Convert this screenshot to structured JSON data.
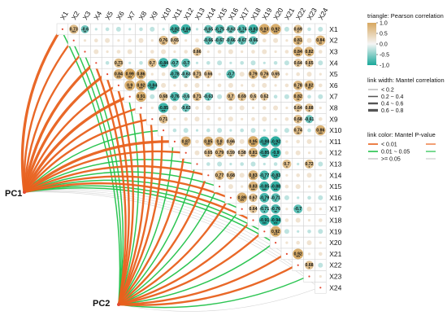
{
  "chart_data": {
    "type": "heatmap",
    "variables": [
      "X1",
      "X2",
      "X3",
      "X4",
      "X5",
      "X6",
      "X7",
      "X8",
      "X9",
      "X10",
      "X11",
      "X12",
      "X13",
      "X14",
      "X15",
      "X16",
      "X17",
      "X18",
      "X19",
      "X20",
      "X21",
      "X22",
      "X23",
      "X24"
    ],
    "predictors": [
      "PC1",
      "PC2"
    ],
    "triangle": "upper",
    "color_range": [
      -1,
      1
    ],
    "colors": {
      "positive": "#d7a860",
      "negative": "#1aa89a",
      "zero": "#f5f5f5",
      "grid": "#cfcfcf"
    },
    "correlations": [
      {
        "row": "X1",
        "col": "X2",
        "r": 0.73,
        "sig": "***"
      },
      {
        "row": "X1",
        "col": "X3",
        "r": -0.6,
        "sig": "**"
      },
      {
        "row": "X1",
        "col": "X11",
        "r": -0.82,
        "sig": "***"
      },
      {
        "row": "X1",
        "col": "X12",
        "r": -0.84,
        "sig": "***"
      },
      {
        "row": "X1",
        "col": "X14",
        "r": -0.65,
        "sig": "**"
      },
      {
        "row": "X1",
        "col": "X15",
        "r": -0.75,
        "sig": "***"
      },
      {
        "row": "X1",
        "col": "X16",
        "r": -0.63,
        "sig": "**"
      },
      {
        "row": "X1",
        "col": "X17",
        "r": -0.74,
        "sig": "***"
      },
      {
        "row": "X1",
        "col": "X18",
        "r": -0.83,
        "sig": "***"
      },
      {
        "row": "X1",
        "col": "X19",
        "r": 0.93,
        "sig": "***"
      },
      {
        "row": "X1",
        "col": "X20",
        "r": 0.92,
        "sig": "***"
      },
      {
        "row": "X1",
        "col": "X22",
        "r": 0.69,
        "sig": "*"
      },
      {
        "row": "X2",
        "col": "X10",
        "r": 0.76,
        "sig": "**"
      },
      {
        "row": "X2",
        "col": "X11",
        "r": 0.65,
        "sig": "*"
      },
      {
        "row": "X2",
        "col": "X14",
        "r": -0.66,
        "sig": "*"
      },
      {
        "row": "X2",
        "col": "X15",
        "r": -0.67,
        "sig": "*"
      },
      {
        "row": "X2",
        "col": "X16",
        "r": -0.66,
        "sig": "*"
      },
      {
        "row": "X2",
        "col": "X17",
        "r": -0.67,
        "sig": "*"
      },
      {
        "row": "X2",
        "col": "X18",
        "r": -0.66,
        "sig": "*"
      },
      {
        "row": "X2",
        "col": "X22",
        "r": 0.81,
        "sig": "**"
      },
      {
        "row": "X2",
        "col": "X24",
        "r": 0.84,
        "sig": "**"
      },
      {
        "row": "X3",
        "col": "X13",
        "r": 0.66,
        "sig": "*"
      },
      {
        "row": "X3",
        "col": "X22",
        "r": 0.84,
        "sig": "***"
      },
      {
        "row": "X3",
        "col": "X23",
        "r": 0.82,
        "sig": "**"
      },
      {
        "row": "X4",
        "col": "X6",
        "r": 0.73,
        "sig": "**"
      },
      {
        "row": "X4",
        "col": "X9",
        "r": 0.7,
        "sig": "*"
      },
      {
        "row": "X4",
        "col": "X10",
        "r": -0.84,
        "sig": "***"
      },
      {
        "row": "X4",
        "col": "X11",
        "r": -0.7,
        "sig": "*"
      },
      {
        "row": "X4",
        "col": "X12",
        "r": -0.7,
        "sig": "*"
      },
      {
        "row": "X4",
        "col": "X22",
        "r": 0.64,
        "sig": "*"
      },
      {
        "row": "X4",
        "col": "X23",
        "r": 0.65,
        "sig": "*"
      },
      {
        "row": "X5",
        "col": "X6",
        "r": 0.84,
        "sig": "***"
      },
      {
        "row": "X5",
        "col": "X7",
        "r": 0.99,
        "sig": "***"
      },
      {
        "row": "X5",
        "col": "X8",
        "r": 0.86,
        "sig": "***"
      },
      {
        "row": "X5",
        "col": "X11",
        "r": -0.78,
        "sig": "***"
      },
      {
        "row": "X5",
        "col": "X12",
        "r": -0.63,
        "sig": "**"
      },
      {
        "row": "X5",
        "col": "X13",
        "r": 0.71,
        "sig": "**"
      },
      {
        "row": "X5",
        "col": "X14",
        "r": 0.66,
        "sig": "*"
      },
      {
        "row": "X5",
        "col": "X16",
        "r": -0.7,
        "sig": "**"
      },
      {
        "row": "X5",
        "col": "X18",
        "r": 0.79,
        "sig": "**"
      },
      {
        "row": "X5",
        "col": "X19",
        "r": 0.76,
        "sig": "**"
      },
      {
        "row": "X5",
        "col": "X20",
        "r": 0.65,
        "sig": "*"
      },
      {
        "row": "X6",
        "col": "X7",
        "r": 0.9,
        "sig": "***"
      },
      {
        "row": "X6",
        "col": "X8",
        "r": 0.92,
        "sig": "***"
      },
      {
        "row": "X6",
        "col": "X9",
        "r": -0.84,
        "sig": "***"
      },
      {
        "row": "X6",
        "col": "X22",
        "r": 0.78,
        "sig": "**"
      },
      {
        "row": "X6",
        "col": "X23",
        "r": 0.82,
        "sig": "**"
      },
      {
        "row": "X7",
        "col": "X8",
        "r": 0.91,
        "sig": "***"
      },
      {
        "row": "X7",
        "col": "X10",
        "r": 0.68,
        "sig": "*"
      },
      {
        "row": "X7",
        "col": "X11",
        "r": -0.76,
        "sig": "**"
      },
      {
        "row": "X7",
        "col": "X12",
        "r": -0.6,
        "sig": "*"
      },
      {
        "row": "X7",
        "col": "X13",
        "r": 0.71,
        "sig": "**"
      },
      {
        "row": "X7",
        "col": "X14",
        "r": -0.63,
        "sig": "*"
      },
      {
        "row": "X7",
        "col": "X16",
        "r": 0.7,
        "sig": "**"
      },
      {
        "row": "X7",
        "col": "X17",
        "r": 0.69,
        "sig": "*"
      },
      {
        "row": "X7",
        "col": "X18",
        "r": 0.6,
        "sig": "*"
      },
      {
        "row": "X7",
        "col": "X19",
        "r": 0.62,
        "sig": "*"
      },
      {
        "row": "X7",
        "col": "X22",
        "r": 0.82,
        "sig": "**"
      },
      {
        "row": "X8",
        "col": "X10",
        "r": -0.85,
        "sig": "***"
      },
      {
        "row": "X8",
        "col": "X12",
        "r": -0.63,
        "sig": "*"
      },
      {
        "row": "X8",
        "col": "X22",
        "r": 0.64,
        "sig": "*"
      },
      {
        "row": "X8",
        "col": "X23",
        "r": 0.68,
        "sig": "*"
      },
      {
        "row": "X9",
        "col": "X10",
        "r": 0.71,
        "sig": "*"
      },
      {
        "row": "X9",
        "col": "X22",
        "r": 0.68,
        "sig": "*"
      },
      {
        "row": "X9",
        "col": "X23",
        "r": -0.61,
        "sig": "*"
      },
      {
        "row": "X10",
        "col": "X22",
        "r": 0.74,
        "sig": "**"
      },
      {
        "row": "X10",
        "col": "X24",
        "r": 0.86,
        "sig": "***"
      },
      {
        "row": "X11",
        "col": "X12",
        "r": 0.87,
        "sig": "***"
      },
      {
        "row": "X11",
        "col": "X14",
        "r": 0.85,
        "sig": "***"
      },
      {
        "row": "X11",
        "col": "X15",
        "r": 0.8,
        "sig": "***"
      },
      {
        "row": "X11",
        "col": "X16",
        "r": 0.66,
        "sig": "*"
      },
      {
        "row": "X11",
        "col": "X18",
        "r": 0.95,
        "sig": "***"
      },
      {
        "row": "X11",
        "col": "X19",
        "r": -0.88,
        "sig": "***"
      },
      {
        "row": "X11",
        "col": "X20",
        "r": -0.92,
        "sig": "***"
      },
      {
        "row": "X12",
        "col": "X14",
        "r": 0.65,
        "sig": "*"
      },
      {
        "row": "X12",
        "col": "X15",
        "r": 0.79,
        "sig": "**"
      },
      {
        "row": "X12",
        "col": "X16",
        "r": 0.59,
        "sig": "*"
      },
      {
        "row": "X12",
        "col": "X17",
        "r": 0.58,
        "sig": "*"
      },
      {
        "row": "X12",
        "col": "X18",
        "r": 0.81,
        "sig": "***"
      },
      {
        "row": "X12",
        "col": "X19",
        "r": -0.85,
        "sig": "***"
      },
      {
        "row": "X12",
        "col": "X20",
        "r": -0.9,
        "sig": "***"
      },
      {
        "row": "X13",
        "col": "X21",
        "r": 0.7,
        "sig": "*"
      },
      {
        "row": "X13",
        "col": "X23",
        "r": 0.72,
        "sig": "*"
      },
      {
        "row": "X14",
        "col": "X15",
        "r": 0.77,
        "sig": "**"
      },
      {
        "row": "X14",
        "col": "X16",
        "r": 0.68,
        "sig": "*"
      },
      {
        "row": "X14",
        "col": "X18",
        "r": 0.83,
        "sig": "***"
      },
      {
        "row": "X14",
        "col": "X19",
        "r": -0.77,
        "sig": "**"
      },
      {
        "row": "X14",
        "col": "X20",
        "r": -0.83,
        "sig": "***"
      },
      {
        "row": "X15",
        "col": "X18",
        "r": 0.83,
        "sig": "***"
      },
      {
        "row": "X15",
        "col": "X19",
        "r": -0.85,
        "sig": "***"
      },
      {
        "row": "X15",
        "col": "X20",
        "r": -0.88,
        "sig": "***"
      },
      {
        "row": "X16",
        "col": "X17",
        "r": 0.89,
        "sig": "***"
      },
      {
        "row": "X16",
        "col": "X18",
        "r": 0.67,
        "sig": "*"
      },
      {
        "row": "X16",
        "col": "X19",
        "r": -0.79,
        "sig": "**"
      },
      {
        "row": "X16",
        "col": "X20",
        "r": -0.71,
        "sig": "*"
      },
      {
        "row": "X17",
        "col": "X18",
        "r": 0.64,
        "sig": "*"
      },
      {
        "row": "X17",
        "col": "X19",
        "r": -0.71,
        "sig": "*"
      },
      {
        "row": "X17",
        "col": "X20",
        "r": -0.76,
        "sig": "**"
      },
      {
        "row": "X17",
        "col": "X22",
        "r": -0.7,
        "sig": "*"
      },
      {
        "row": "X18",
        "col": "X19",
        "r": -0.91,
        "sig": "***"
      },
      {
        "row": "X18",
        "col": "X20",
        "r": -0.94,
        "sig": "***"
      },
      {
        "row": "X19",
        "col": "X20",
        "r": 0.92,
        "sig": "***"
      },
      {
        "row": "X21",
        "col": "X22",
        "r": 0.92,
        "sig": "***"
      },
      {
        "row": "X22",
        "col": "X23",
        "r": 0.68,
        "sig": "*"
      }
    ],
    "mantel": [
      {
        "from": "PC1",
        "to": "X1",
        "r": "0.6 ~ 0.8",
        "p": "< 0.01"
      },
      {
        "from": "PC1",
        "to": "X2",
        "r": "0.4 ~ 0.6",
        "p": "< 0.01"
      },
      {
        "from": "PC1",
        "to": "X3",
        "r": "0.4 ~ 0.6",
        "p": "< 0.01"
      },
      {
        "from": "PC1",
        "to": "X4",
        "r": "0.6 ~ 0.8",
        "p": "< 0.01"
      },
      {
        "from": "PC1",
        "to": "X5",
        "r": "0.6 ~ 0.8",
        "p": "< 0.01"
      },
      {
        "from": "PC1",
        "to": "X6",
        "r": "0.4 ~ 0.6",
        "p": "< 0.01"
      },
      {
        "from": "PC1",
        "to": "X7",
        "r": "0.6 ~ 0.8",
        "p": "< 0.01"
      },
      {
        "from": "PC1",
        "to": "X8",
        "r": "0.4 ~ 0.6",
        "p": "< 0.01"
      },
      {
        "from": "PC1",
        "to": "X9",
        "r": "0.4 ~ 0.6",
        "p": "< 0.01"
      },
      {
        "from": "PC1",
        "to": "X10",
        "r": "0.2 ~ 0.4",
        "p": "0.01 ~ 0.05"
      },
      {
        "from": "PC1",
        "to": "X11",
        "r": "0.6 ~ 0.8",
        "p": "< 0.01"
      },
      {
        "from": "PC1",
        "to": "X12",
        "r": "0.4 ~ 0.6",
        "p": "< 0.01"
      },
      {
        "from": "PC1",
        "to": "X13",
        "r": "0.2 ~ 0.4",
        "p": "0.01 ~ 0.05"
      },
      {
        "from": "PC1",
        "to": "X14",
        "r": "0.4 ~ 0.6",
        "p": "< 0.01"
      },
      {
        "from": "PC1",
        "to": "X15",
        "r": "0.2 ~ 0.4",
        "p": "0.01 ~ 0.05"
      },
      {
        "from": "PC1",
        "to": "X16",
        "r": "0.4 ~ 0.6",
        "p": "< 0.01"
      },
      {
        "from": "PC1",
        "to": "X17",
        "r": "0.2 ~ 0.4",
        "p": "0.01 ~ 0.05"
      },
      {
        "from": "PC1",
        "to": "X18",
        "r": "0.4 ~ 0.6",
        "p": "< 0.01"
      },
      {
        "from": "PC1",
        "to": "X19",
        "r": "0.2 ~ 0.4",
        "p": "0.01 ~ 0.05"
      },
      {
        "from": "PC1",
        "to": "X20",
        "r": "0.2 ~ 0.4",
        "p": "0.01 ~ 0.05"
      },
      {
        "from": "PC1",
        "to": "X21",
        "r": "< 0.2",
        "p": ">= 0.05"
      },
      {
        "from": "PC1",
        "to": "X22",
        "r": "< 0.2",
        "p": ">= 0.05"
      },
      {
        "from": "PC1",
        "to": "X23",
        "r": "< 0.2",
        "p": ">= 0.05"
      },
      {
        "from": "PC1",
        "to": "X24",
        "r": "< 0.2",
        "p": ">= 0.05"
      },
      {
        "from": "PC2",
        "to": "X1",
        "r": "0.2 ~ 0.4",
        "p": "0.01 ~ 0.05"
      },
      {
        "from": "PC2",
        "to": "X2",
        "r": "0.2 ~ 0.4",
        "p": "0.01 ~ 0.05"
      },
      {
        "from": "PC2",
        "to": "X3",
        "r": "0.2 ~ 0.4",
        "p": "0.01 ~ 0.05"
      },
      {
        "from": "PC2",
        "to": "X4",
        "r": "0.4 ~ 0.6",
        "p": "< 0.01"
      },
      {
        "from": "PC2",
        "to": "X5",
        "r": "0.4 ~ 0.6",
        "p": "< 0.01"
      },
      {
        "from": "PC2",
        "to": "X6",
        "r": "0.4 ~ 0.6",
        "p": "< 0.01"
      },
      {
        "from": "PC2",
        "to": "X7",
        "r": "0.2 ~ 0.4",
        "p": "0.01 ~ 0.05"
      },
      {
        "from": "PC2",
        "to": "X8",
        "r": "0.4 ~ 0.6",
        "p": "< 0.01"
      },
      {
        "from": "PC2",
        "to": "X9",
        "r": "0.4 ~ 0.6",
        "p": "< 0.01"
      },
      {
        "from": "PC2",
        "to": "X10",
        "r": "0.4 ~ 0.6",
        "p": "< 0.01"
      },
      {
        "from": "PC2",
        "to": "X11",
        "r": "0.2 ~ 0.4",
        "p": "0.01 ~ 0.05"
      },
      {
        "from": "PC2",
        "to": "X12",
        "r": "0.4 ~ 0.6",
        "p": "< 0.01"
      },
      {
        "from": "PC2",
        "to": "X13",
        "r": "0.2 ~ 0.4",
        "p": "0.01 ~ 0.05"
      },
      {
        "from": "PC2",
        "to": "X14",
        "r": "0.4 ~ 0.6",
        "p": "< 0.01"
      },
      {
        "from": "PC2",
        "to": "X15",
        "r": "0.2 ~ 0.4",
        "p": "0.01 ~ 0.05"
      },
      {
        "from": "PC2",
        "to": "X16",
        "r": "0.4 ~ 0.6",
        "p": "< 0.01"
      },
      {
        "from": "PC2",
        "to": "X17",
        "r": "0.2 ~ 0.4",
        "p": "0.01 ~ 0.05"
      },
      {
        "from": "PC2",
        "to": "X18",
        "r": "0.4 ~ 0.6",
        "p": "< 0.01"
      },
      {
        "from": "PC2",
        "to": "X19",
        "r": "0.4 ~ 0.6",
        "p": "< 0.01"
      },
      {
        "from": "PC2",
        "to": "X20",
        "r": "0.2 ~ 0.4",
        "p": "0.01 ~ 0.05"
      },
      {
        "from": "PC2",
        "to": "X21",
        "r": "0.4 ~ 0.6",
        "p": "< 0.01"
      },
      {
        "from": "PC2",
        "to": "X22",
        "r": "0.4 ~ 0.6",
        "p": "< 0.01"
      },
      {
        "from": "PC2",
        "to": "X23",
        "r": "0.2 ~ 0.4",
        "p": "0.01 ~ 0.05"
      },
      {
        "from": "PC2",
        "to": "X24",
        "r": "< 0.2",
        "p": ">= 0.05"
      }
    ],
    "legend": {
      "triangle_title": "triangle: Pearson correlation",
      "triangle_ticks": [
        "1.0",
        "0.5",
        "0.0",
        "-0.5",
        "-1.0"
      ],
      "width_title": "link width: Mantel correlation",
      "width_items": [
        "< 0.2",
        "0.2 ~ 0.4",
        "0.4 ~ 0.6",
        "0.6 ~ 0.8"
      ],
      "color_title": "link color: Mantel P-value",
      "color_items": [
        {
          "label": "< 0.01",
          "color": "#e8601c"
        },
        {
          "label": "0.01 ~ 0.05",
          "color": "#22c24a"
        },
        {
          "label": ">= 0.05",
          "color": "#cccccc"
        }
      ],
      "placement": "right"
    }
  }
}
